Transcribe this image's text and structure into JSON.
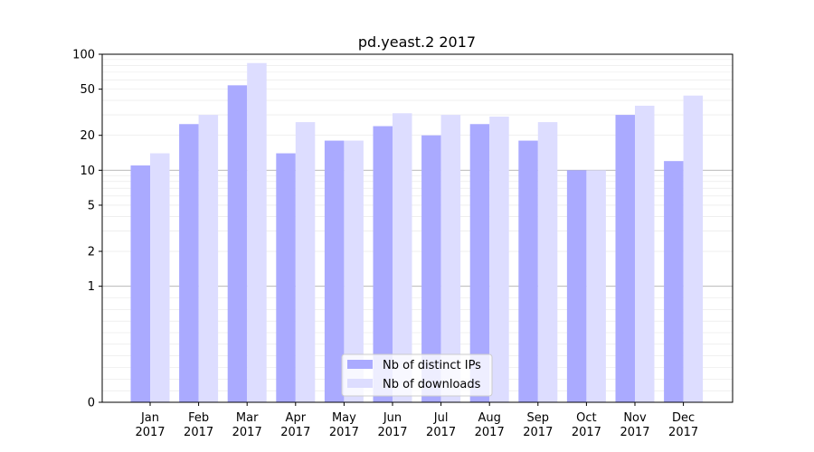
{
  "chart_data": {
    "type": "bar",
    "title": "pd.yeast.2 2017",
    "xlabel": "",
    "ylabel": "",
    "yscale": "symlog",
    "ylim": [
      0,
      100
    ],
    "yticks": [
      0,
      1,
      2,
      5,
      10,
      20,
      50,
      100
    ],
    "categories": [
      "Jan\n2017",
      "Feb\n2017",
      "Mar\n2017",
      "Apr\n2017",
      "May\n2017",
      "Jun\n2017",
      "Jul\n2017",
      "Aug\n2017",
      "Sep\n2017",
      "Oct\n2017",
      "Nov\n2017",
      "Dec\n2017"
    ],
    "series": [
      {
        "name": "Nb of distinct IPs",
        "color": "#aaaaff",
        "values": [
          11,
          25,
          54,
          14,
          18,
          24,
          20,
          25,
          18,
          10,
          30,
          12
        ]
      },
      {
        "name": "Nb of downloads",
        "color": "#ddddff",
        "values": [
          14,
          30,
          84,
          26,
          18,
          31,
          30,
          29,
          26,
          10,
          36,
          44
        ]
      }
    ],
    "grid": true,
    "legend_position": "bottom-center"
  }
}
